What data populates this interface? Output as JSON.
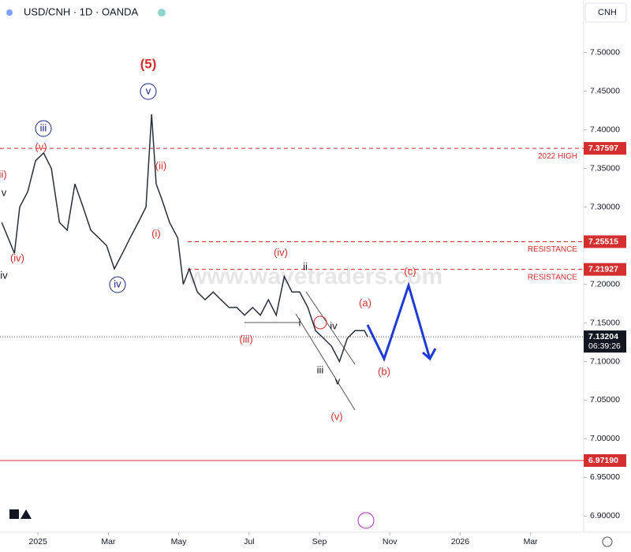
{
  "chart_data": {
    "type": "line",
    "title": "USD/CNH · 1D · OANDA",
    "currency_button": "CNH",
    "watermark": "www.wavetraders.com",
    "x": [
      -1.03,
      -0.85,
      -0.67,
      -0.52,
      -0.29,
      -0.07,
      0.16,
      0.38,
      0.61,
      0.83,
      1.05,
      1.28,
      1.5,
      1.73,
      1.95,
      2.17,
      2.4,
      2.62,
      2.85,
      3.07,
      3.23,
      3.36,
      3.52,
      3.74,
      3.97,
      4.13,
      4.3,
      4.53,
      4.75,
      4.98,
      5.2,
      5.43,
      5.65,
      5.87,
      6.1,
      6.32,
      6.55,
      6.77,
      7.0,
      7.22,
      7.44,
      7.67,
      7.89,
      8.12,
      8.34,
      8.57,
      8.79,
      9.01,
      9.28,
      9.37
    ],
    "values": [
      7.28,
      7.26,
      7.24,
      7.3,
      7.32,
      7.36,
      7.37,
      7.35,
      7.28,
      7.27,
      7.33,
      7.3,
      7.27,
      7.26,
      7.25,
      7.22,
      7.24,
      7.26,
      7.28,
      7.3,
      7.42,
      7.33,
      7.31,
      7.28,
      7.26,
      7.2,
      7.22,
      7.19,
      7.18,
      7.19,
      7.18,
      7.17,
      7.17,
      7.16,
      7.17,
      7.16,
      7.18,
      7.16,
      7.21,
      7.19,
      7.19,
      7.17,
      7.14,
      7.13,
      7.12,
      7.1,
      7.13,
      7.14,
      7.14,
      7.13204
    ],
    "color": "#2a2e39",
    "xlim": [
      -1.08,
      15.51
    ],
    "ylim": [
      6.88,
      7.568
    ],
    "xticks": [
      {
        "value": 0,
        "label": "2025"
      },
      {
        "value": 2,
        "label": "Mar"
      },
      {
        "value": 4,
        "label": "May"
      },
      {
        "value": 6,
        "label": "Jul"
      },
      {
        "value": 8,
        "label": "Sep"
      },
      {
        "value": 10,
        "label": "Nov"
      },
      {
        "value": 12,
        "label": "2026"
      },
      {
        "value": 14,
        "label": "Mar"
      }
    ],
    "yticks": [
      {
        "value": 7.5,
        "label": "7.50000"
      },
      {
        "value": 7.45,
        "label": "7.45000"
      },
      {
        "value": 7.4,
        "label": "7.40000"
      },
      {
        "value": 7.35,
        "label": "7.35000"
      },
      {
        "value": 7.3,
        "label": "7.30000"
      },
      {
        "value": 7.2,
        "label": "7.20000"
      },
      {
        "value": 7.15,
        "label": "7.15000"
      },
      {
        "value": 7.1,
        "label": "7.10000"
      },
      {
        "value": 7.05,
        "label": "7.05000"
      },
      {
        "value": 7.0,
        "label": "7.00000"
      },
      {
        "value": 6.95,
        "label": "6.95000"
      },
      {
        "value": 6.9,
        "label": "6.90000"
      }
    ],
    "levels": [
      {
        "value": 7.37597,
        "label": "7.37597",
        "note": "2022 HIGH"
      },
      {
        "value": 7.25515,
        "label": "7.25515",
        "note": "RESISTANCE"
      },
      {
        "value": 7.21927,
        "label": "7.21927",
        "note": "RESISTANCE"
      },
      {
        "value": 6.9719,
        "label": "6.97190"
      }
    ],
    "last_price": {
      "value": 7.13204,
      "label": "7.13204",
      "countdown": "06:39:26"
    },
    "annotations": [
      "(5)",
      "v",
      "iii",
      "(v)",
      "(iii)",
      "v",
      "(iv)",
      "iv",
      "(ii)",
      "(i)",
      "iv",
      "(iv)",
      "ii",
      "(iii)",
      "i",
      "iv",
      "iii",
      "v",
      "(v)",
      "(a)",
      "(b)",
      "(c)"
    ]
  }
}
